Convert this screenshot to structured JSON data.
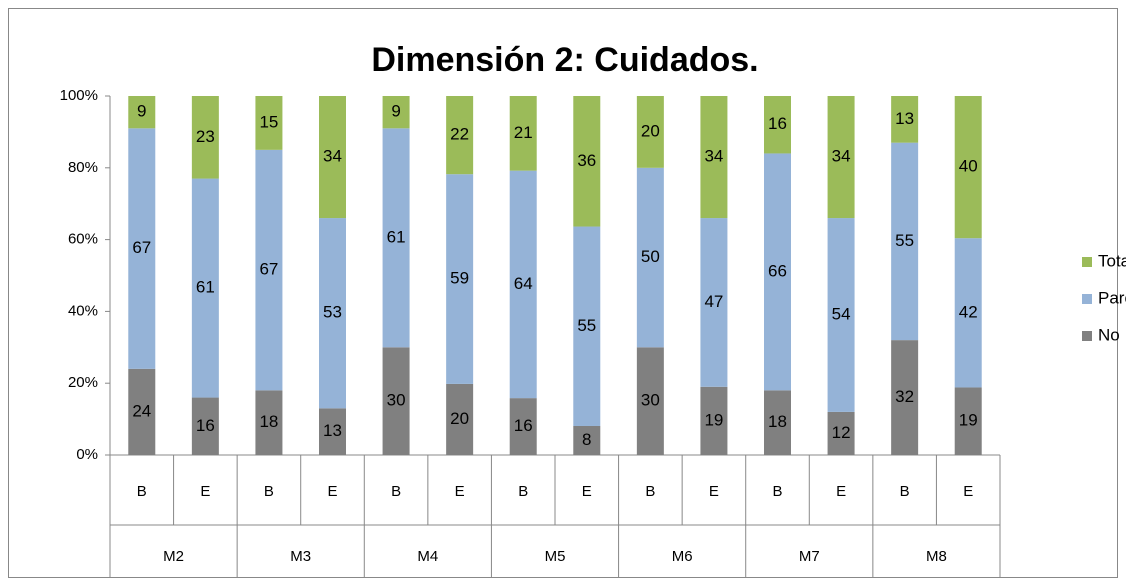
{
  "chart_data": {
    "type": "stacked_bar_percent",
    "title": "Dimensión 2: Cuidados.",
    "groups": [
      "M2",
      "M3",
      "M4",
      "M5",
      "M6",
      "M7",
      "M8"
    ],
    "categories": [
      "B",
      "E",
      "B",
      "E",
      "B",
      "E",
      "B",
      "E",
      "B",
      "E",
      "B",
      "E",
      "B",
      "E"
    ],
    "series": [
      {
        "name": "No",
        "color": "#808080",
        "values": [
          24,
          16,
          18,
          13,
          30,
          20,
          16,
          8,
          30,
          19,
          18,
          12,
          32,
          19
        ]
      },
      {
        "name": "Parcial",
        "color": "#95b3d7",
        "values": [
          67,
          61,
          67,
          53,
          61,
          59,
          64,
          55,
          50,
          47,
          66,
          54,
          55,
          42
        ]
      },
      {
        "name": "Total",
        "color": "#9bbb59",
        "values": [
          9,
          23,
          15,
          34,
          9,
          22,
          21,
          36,
          20,
          34,
          16,
          34,
          13,
          40
        ]
      }
    ],
    "ylim": [
      0,
      100
    ],
    "yticks": [
      {
        "value": 0,
        "label": "0%"
      },
      {
        "value": 20,
        "label": "20%"
      },
      {
        "value": 40,
        "label": "40%"
      },
      {
        "value": 60,
        "label": "60%"
      },
      {
        "value": 80,
        "label": "80%"
      },
      {
        "value": 100,
        "label": "100%"
      }
    ],
    "legend": "right"
  }
}
